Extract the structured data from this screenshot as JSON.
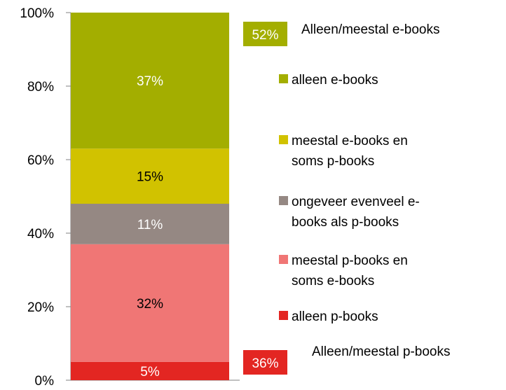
{
  "chart_data": {
    "type": "bar",
    "stacked": true,
    "y_tick_labels": [
      "0%",
      "20%",
      "40%",
      "60%",
      "80%",
      "100%"
    ],
    "ylim": [
      0,
      100
    ],
    "grid": false,
    "legend_position": "right",
    "series": [
      {
        "name": "alleen p-books",
        "value": 5,
        "label": "5%",
        "color": "#e32622",
        "label_color": "#ffffff"
      },
      {
        "name": "meestal p-books en soms e-books",
        "value": 32,
        "label": "32%",
        "color": "#f07675",
        "label_color": "#000000"
      },
      {
        "name": "ongeveer evenveel e-books als p-books",
        "value": 11,
        "label": "11%",
        "color": "#958883",
        "label_color": "#ffffff"
      },
      {
        "name": "meestal e-books en soms p-books",
        "value": 15,
        "label": "15%",
        "color": "#d1c200",
        "label_color": "#000000"
      },
      {
        "name": "alleen e-books",
        "value": 37,
        "label": "37%",
        "color": "#a3ae00",
        "label_color": "#ffffff"
      }
    ],
    "legend": [
      {
        "line1": "alleen e-books",
        "line2": "",
        "color": "#a3ae00"
      },
      {
        "line1": "meestal e-books en",
        "line2": "soms p-books",
        "color": "#d1c200"
      },
      {
        "line1": "ongeveer evenveel e-",
        "line2": "books als p-books",
        "color": "#958883"
      },
      {
        "line1": "meestal p-books en",
        "line2": "soms e-books",
        "color": "#f07675"
      },
      {
        "line1": "alleen p-books",
        "line2": "",
        "color": "#e32622"
      }
    ],
    "group_annotations": [
      {
        "badge": "52%",
        "text": "Alleen/meestal e-books",
        "color": "#a3ae00",
        "position": "top"
      },
      {
        "badge": "36%",
        "text": "Alleen/meestal p-books",
        "color": "#e32622",
        "position": "bottom"
      }
    ]
  }
}
